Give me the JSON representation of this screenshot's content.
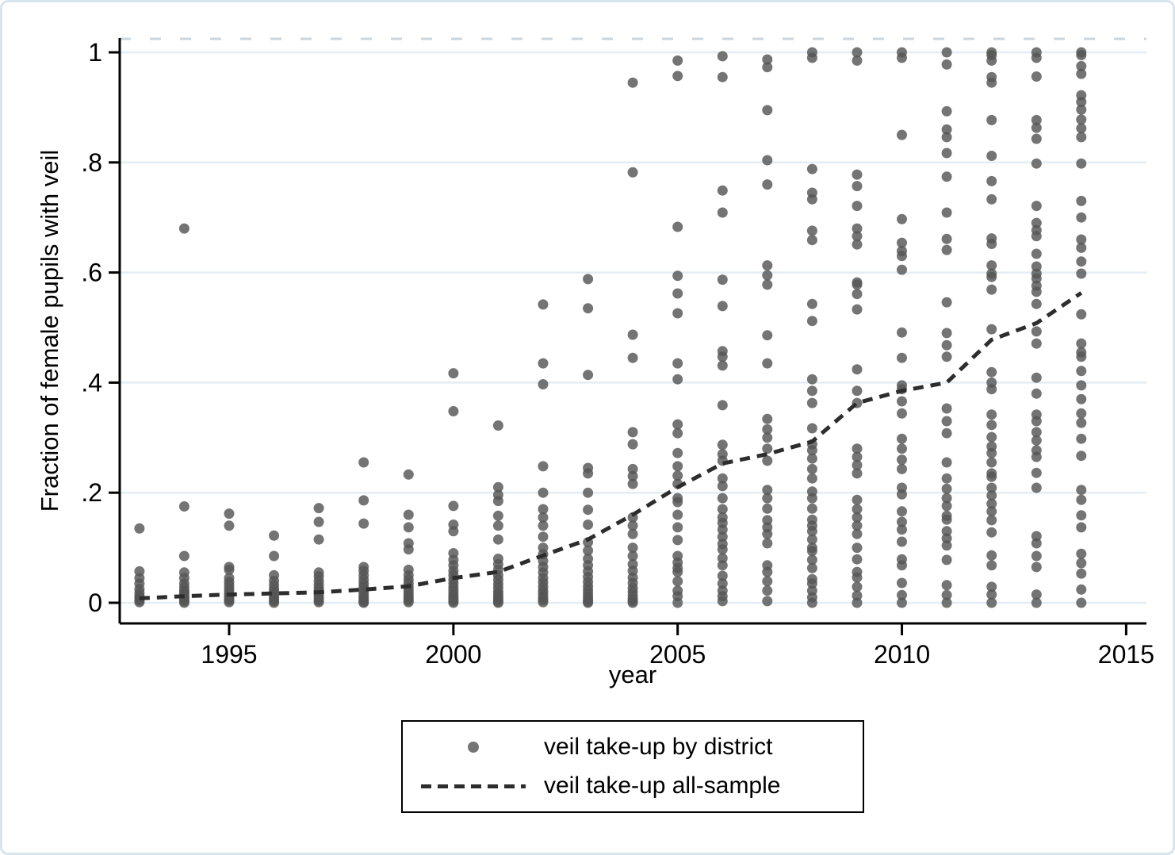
{
  "chart_data": {
    "type": "scatter",
    "title": "",
    "xlabel": "year",
    "ylabel": "Fraction of female pupils with veil",
    "xlim": [
      1992.4,
      2015.4
    ],
    "ylim": [
      0,
      1
    ],
    "grid": "horizontal",
    "x_tick_values": [
      1995,
      2000,
      2005,
      2010,
      2015
    ],
    "x_tick_labels": [
      "1995",
      "2000",
      "2005",
      "2010",
      "2015"
    ],
    "y_tick_values": [
      0,
      0.2,
      0.4,
      0.6,
      0.8,
      1
    ],
    "y_tick_labels": [
      "0",
      ".2",
      ".4",
      ".6",
      ".8",
      "1"
    ],
    "legend": {
      "position": "bottom",
      "entries": [
        {
          "marker": "dot",
          "label": "veil take-up by district"
        },
        {
          "marker": "dashed-line",
          "label": "veil take-up all-sample"
        }
      ]
    },
    "series": [
      {
        "name": "veil take-up by district",
        "type": "scatter",
        "color": "#737373",
        "points_by_year": {
          "1993": [
            0.135,
            0.057,
            0.045,
            0.035,
            0.025,
            0.018,
            0.012,
            0.008,
            0.004,
            0.001
          ],
          "1994": [
            0.68,
            0.175,
            0.085,
            0.055,
            0.045,
            0.035,
            0.028,
            0.022,
            0.018,
            0.014,
            0.01,
            0.006,
            0.003,
            0.0
          ],
          "1995": [
            0.162,
            0.14,
            0.065,
            0.06,
            0.045,
            0.038,
            0.032,
            0.026,
            0.02,
            0.015,
            0.011,
            0.007,
            0.004,
            0.001
          ],
          "1996": [
            0.122,
            0.085,
            0.05,
            0.04,
            0.032,
            0.025,
            0.02,
            0.015,
            0.01,
            0.006,
            0.003,
            0.0
          ],
          "1997": [
            0.172,
            0.147,
            0.115,
            0.055,
            0.048,
            0.04,
            0.033,
            0.027,
            0.022,
            0.017,
            0.012,
            0.008,
            0.004,
            0.001
          ],
          "1998": [
            0.255,
            0.186,
            0.144,
            0.065,
            0.058,
            0.05,
            0.042,
            0.035,
            0.029,
            0.023,
            0.018,
            0.013,
            0.009,
            0.005,
            0.002,
            0.0
          ],
          "1999": [
            0.233,
            0.16,
            0.137,
            0.108,
            0.097,
            0.06,
            0.05,
            0.042,
            0.035,
            0.028,
            0.022,
            0.017,
            0.012,
            0.008,
            0.004,
            0.001
          ],
          "2000": [
            0.417,
            0.348,
            0.176,
            0.142,
            0.13,
            0.09,
            0.078,
            0.068,
            0.058,
            0.05,
            0.042,
            0.035,
            0.028,
            0.022,
            0.016,
            0.011,
            0.007,
            0.003,
            0.0
          ],
          "2001": [
            0.322,
            0.21,
            0.196,
            0.185,
            0.158,
            0.14,
            0.115,
            0.08,
            0.07,
            0.06,
            0.05,
            0.042,
            0.034,
            0.027,
            0.02,
            0.015,
            0.01,
            0.006,
            0.002,
            0.0
          ],
          "2002": [
            0.542,
            0.435,
            0.397,
            0.248,
            0.2,
            0.17,
            0.155,
            0.14,
            0.12,
            0.1,
            0.088,
            0.076,
            0.065,
            0.055,
            0.045,
            0.037,
            0.029,
            0.022,
            0.016,
            0.01,
            0.005,
            0.001
          ],
          "2003": [
            0.588,
            0.535,
            0.414,
            0.245,
            0.235,
            0.2,
            0.169,
            0.142,
            0.11,
            0.095,
            0.08,
            0.068,
            0.057,
            0.047,
            0.038,
            0.03,
            0.023,
            0.017,
            0.011,
            0.006,
            0.002,
            0.0
          ],
          "2004": [
            0.945,
            0.782,
            0.487,
            0.445,
            0.31,
            0.288,
            0.243,
            0.23,
            0.216,
            0.155,
            0.14,
            0.125,
            0.1,
            0.085,
            0.07,
            0.058,
            0.046,
            0.036,
            0.027,
            0.02,
            0.013,
            0.007,
            0.003,
            0.0
          ],
          "2005": [
            0.985,
            0.957,
            0.683,
            0.594,
            0.562,
            0.526,
            0.435,
            0.406,
            0.324,
            0.308,
            0.272,
            0.248,
            0.231,
            0.216,
            0.19,
            0.183,
            0.16,
            0.137,
            0.114,
            0.085,
            0.073,
            0.063,
            0.056,
            0.039,
            0.022,
            0.012,
            0.0
          ],
          "2006": [
            0.993,
            0.955,
            0.749,
            0.709,
            0.587,
            0.539,
            0.457,
            0.447,
            0.431,
            0.359,
            0.287,
            0.27,
            0.258,
            0.226,
            0.212,
            0.19,
            0.17,
            0.155,
            0.145,
            0.133,
            0.12,
            0.107,
            0.097,
            0.081,
            0.068,
            0.049,
            0.035,
            0.022,
            0.012,
            0.003
          ],
          "2007": [
            0.987,
            0.973,
            0.895,
            0.804,
            0.76,
            0.613,
            0.595,
            0.578,
            0.486,
            0.435,
            0.334,
            0.315,
            0.3,
            0.28,
            0.258,
            0.205,
            0.19,
            0.171,
            0.15,
            0.137,
            0.125,
            0.108,
            0.068,
            0.056,
            0.039,
            0.022,
            0.003
          ],
          "2008": [
            1.0,
            0.99,
            0.788,
            0.745,
            0.733,
            0.676,
            0.659,
            0.543,
            0.512,
            0.406,
            0.385,
            0.363,
            0.317,
            0.288,
            0.277,
            0.262,
            0.243,
            0.226,
            0.202,
            0.19,
            0.171,
            0.151,
            0.14,
            0.13,
            0.115,
            0.1,
            0.094,
            0.078,
            0.063,
            0.043,
            0.035,
            0.022,
            0.01,
            0.0
          ],
          "2009": [
            1.0,
            0.985,
            0.778,
            0.757,
            0.721,
            0.68,
            0.666,
            0.651,
            0.582,
            0.578,
            0.561,
            0.533,
            0.424,
            0.385,
            0.363,
            0.28,
            0.265,
            0.25,
            0.235,
            0.187,
            0.17,
            0.155,
            0.14,
            0.125,
            0.1,
            0.079,
            0.056,
            0.046,
            0.029,
            0.013,
            0.0
          ],
          "2010": [
            1.0,
            0.99,
            0.85,
            0.697,
            0.654,
            0.639,
            0.63,
            0.605,
            0.491,
            0.445,
            0.395,
            0.388,
            0.366,
            0.344,
            0.298,
            0.28,
            0.26,
            0.243,
            0.209,
            0.197,
            0.166,
            0.147,
            0.133,
            0.111,
            0.079,
            0.068,
            0.036,
            0.014,
            0.0
          ],
          "2011": [
            1.0,
            0.978,
            0.893,
            0.86,
            0.846,
            0.817,
            0.774,
            0.709,
            0.661,
            0.641,
            0.546,
            0.49,
            0.468,
            0.447,
            0.353,
            0.33,
            0.308,
            0.255,
            0.226,
            0.207,
            0.19,
            0.176,
            0.158,
            0.151,
            0.13,
            0.117,
            0.104,
            0.078,
            0.032,
            0.014,
            0.0
          ],
          "2012": [
            1.0,
            0.995,
            0.985,
            0.955,
            0.945,
            0.877,
            0.812,
            0.766,
            0.733,
            0.662,
            0.652,
            0.613,
            0.598,
            0.592,
            0.569,
            0.497,
            0.419,
            0.4,
            0.388,
            0.342,
            0.323,
            0.301,
            0.284,
            0.272,
            0.255,
            0.235,
            0.229,
            0.209,
            0.195,
            0.18,
            0.166,
            0.15,
            0.128,
            0.086,
            0.068,
            0.029,
            0.015,
            0.0
          ],
          "2013": [
            1.0,
            0.99,
            0.956,
            0.877,
            0.863,
            0.843,
            0.798,
            0.721,
            0.69,
            0.677,
            0.666,
            0.634,
            0.611,
            0.598,
            0.589,
            0.576,
            0.565,
            0.543,
            0.493,
            0.471,
            0.409,
            0.38,
            0.342,
            0.33,
            0.31,
            0.295,
            0.277,
            0.265,
            0.236,
            0.209,
            0.121,
            0.108,
            0.085,
            0.065,
            0.015,
            0.0
          ],
          "2014": [
            1.0,
            0.995,
            0.975,
            0.961,
            0.922,
            0.91,
            0.896,
            0.878,
            0.862,
            0.846,
            0.798,
            0.73,
            0.7,
            0.66,
            0.645,
            0.62,
            0.598,
            0.524,
            0.471,
            0.455,
            0.447,
            0.421,
            0.395,
            0.37,
            0.344,
            0.327,
            0.298,
            0.267,
            0.205,
            0.187,
            0.159,
            0.137,
            0.089,
            0.072,
            0.053,
            0.024,
            0.0
          ]
        }
      },
      {
        "name": "veil take-up all-sample",
        "type": "line",
        "style": "dashed",
        "color": "#2d2d2d",
        "x": [
          1993,
          1994,
          1995,
          1996,
          1997,
          1998,
          1999,
          2000,
          2001,
          2002,
          2003,
          2004,
          2005,
          2006,
          2007,
          2008,
          2009,
          2010,
          2011,
          2012,
          2013,
          2014
        ],
        "y": [
          0.008,
          0.012,
          0.015,
          0.017,
          0.019,
          0.024,
          0.03,
          0.045,
          0.056,
          0.086,
          0.115,
          0.16,
          0.21,
          0.253,
          0.27,
          0.293,
          0.363,
          0.385,
          0.4,
          0.478,
          0.508,
          0.563
        ]
      }
    ]
  },
  "colors": {
    "dot": "#737373",
    "trend_line": "#2d2d2d",
    "gridline": "#e4edf3",
    "axis": "#000000",
    "frame_border": "#d7e5ef",
    "background": "#ffffff"
  }
}
